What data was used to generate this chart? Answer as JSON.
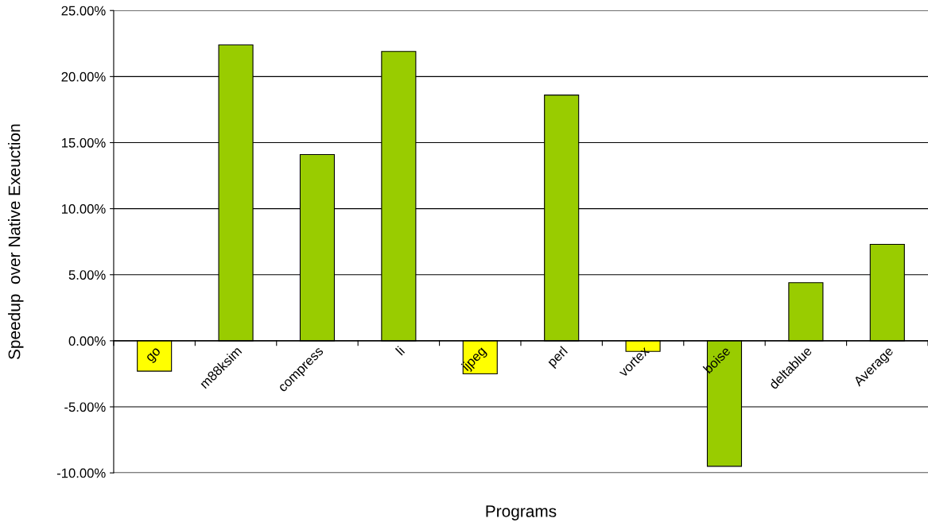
{
  "chart_data": {
    "type": "bar",
    "xlabel": "Programs",
    "ylabel": "Speedup  over Native Exeuction",
    "categories": [
      "go",
      "m88ksim",
      "compress",
      "li",
      "ijpeg",
      "perl",
      "vortex",
      "boise",
      "deltablue",
      "Average"
    ],
    "values": [
      -2.3,
      22.4,
      14.1,
      21.9,
      -2.5,
      18.6,
      -0.8,
      -9.5,
      4.4,
      7.3
    ],
    "colors": [
      "#ffff00",
      "#99cc00",
      "#99cc00",
      "#99cc00",
      "#ffff00",
      "#99cc00",
      "#ffff00",
      "#99cc00",
      "#99cc00",
      "#99cc00"
    ],
    "ylim": [
      -10,
      25
    ],
    "yticks": [
      {
        "value": -10,
        "label": "-10.00%"
      },
      {
        "value": -5,
        "label": "-5.00%"
      },
      {
        "value": 0,
        "label": "0.00%"
      },
      {
        "value": 5,
        "label": "5.00%"
      },
      {
        "value": 10,
        "label": "10.00%"
      },
      {
        "value": 15,
        "label": "15.00%"
      },
      {
        "value": 20,
        "label": "20.00%"
      },
      {
        "value": 25,
        "label": "25.00%"
      }
    ],
    "grid": "y",
    "legend": false
  }
}
